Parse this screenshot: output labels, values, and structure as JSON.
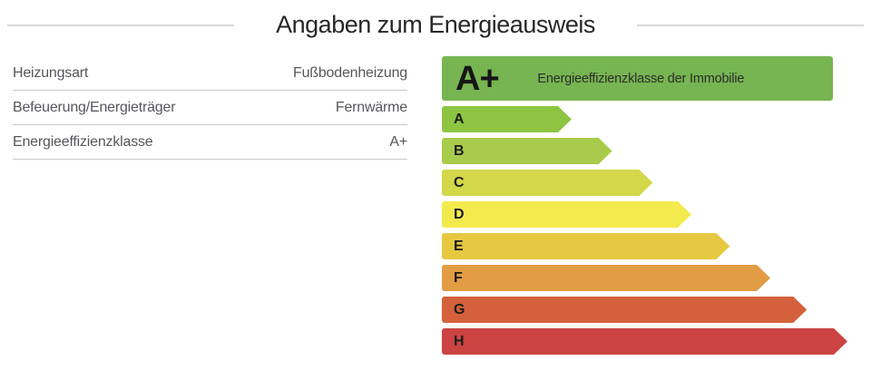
{
  "title": "Angaben zum Energieausweis",
  "details": {
    "rows": [
      {
        "label": "Heizungsart",
        "value": "Fußbodenheizung"
      },
      {
        "label": "Befeuerung/Energieträger",
        "value": "Fernwärme"
      },
      {
        "label": "Energieeffizienzklasse",
        "value": "A+"
      }
    ]
  },
  "chart_data": {
    "type": "bar",
    "title": "Energieeffizienzklasse der Immobilie",
    "selected_class": "A+",
    "selected_class_color": "#76b551",
    "categories": [
      "A",
      "B",
      "C",
      "D",
      "E",
      "F",
      "G",
      "H"
    ],
    "values": [
      32,
      42,
      52,
      61.5,
      71,
      81,
      90,
      100
    ],
    "values_unit": "percent-of-max-bar-width",
    "colors": [
      "#8dc543",
      "#a9cb4b",
      "#d3d74a",
      "#f3ea4e",
      "#e6c841",
      "#e19c44",
      "#d4613b",
      "#cb4342"
    ],
    "orientation": "horizontal",
    "grid": false,
    "legend_position": "none"
  }
}
